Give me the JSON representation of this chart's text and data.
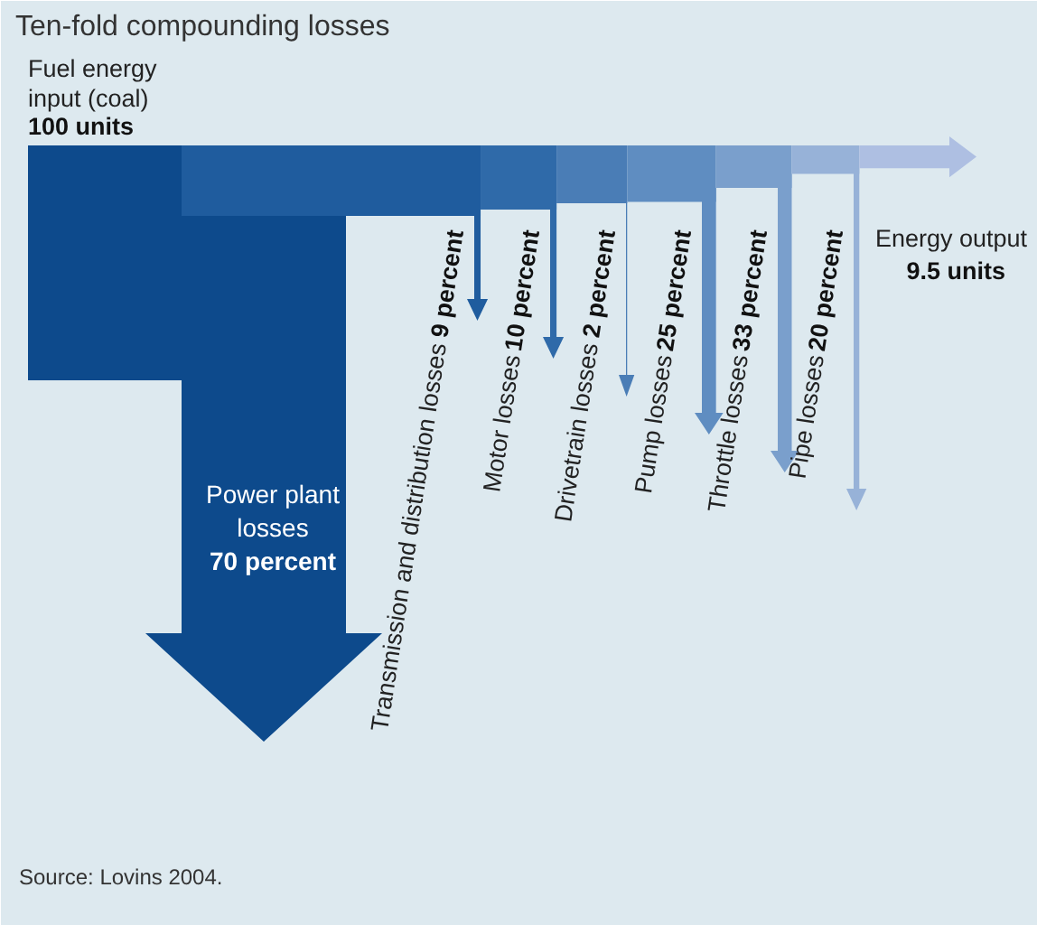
{
  "chart_data": {
    "type": "other",
    "title": "Ten-fold compounding losses",
    "categories": [
      "Fuel energy input (coal)",
      "Power plant losses",
      "Transmission and distribution losses",
      "Motor losses",
      "Drivetrain losses",
      "Pump losses",
      "Throttle losses",
      "Pipe losses",
      "Energy output"
    ],
    "values": [
      100,
      70,
      9,
      10,
      2,
      25,
      33,
      20,
      9.5
    ],
    "value_labels": [
      "100 units",
      "70 percent",
      "9 percent",
      "10 percent",
      "2 percent",
      "25 percent",
      "33 percent",
      "20 percent",
      "9.5 units"
    ],
    "colors": [
      "#0d4a8c",
      "#0d4a8c",
      "#1f5c9e",
      "#2f6aa9",
      "#4a7db6",
      "#5f8dc1",
      "#7a9fcc",
      "#97b2d8",
      "#aebfe2"
    ],
    "annotations": [
      "Source: Lovins 2004."
    ]
  }
}
